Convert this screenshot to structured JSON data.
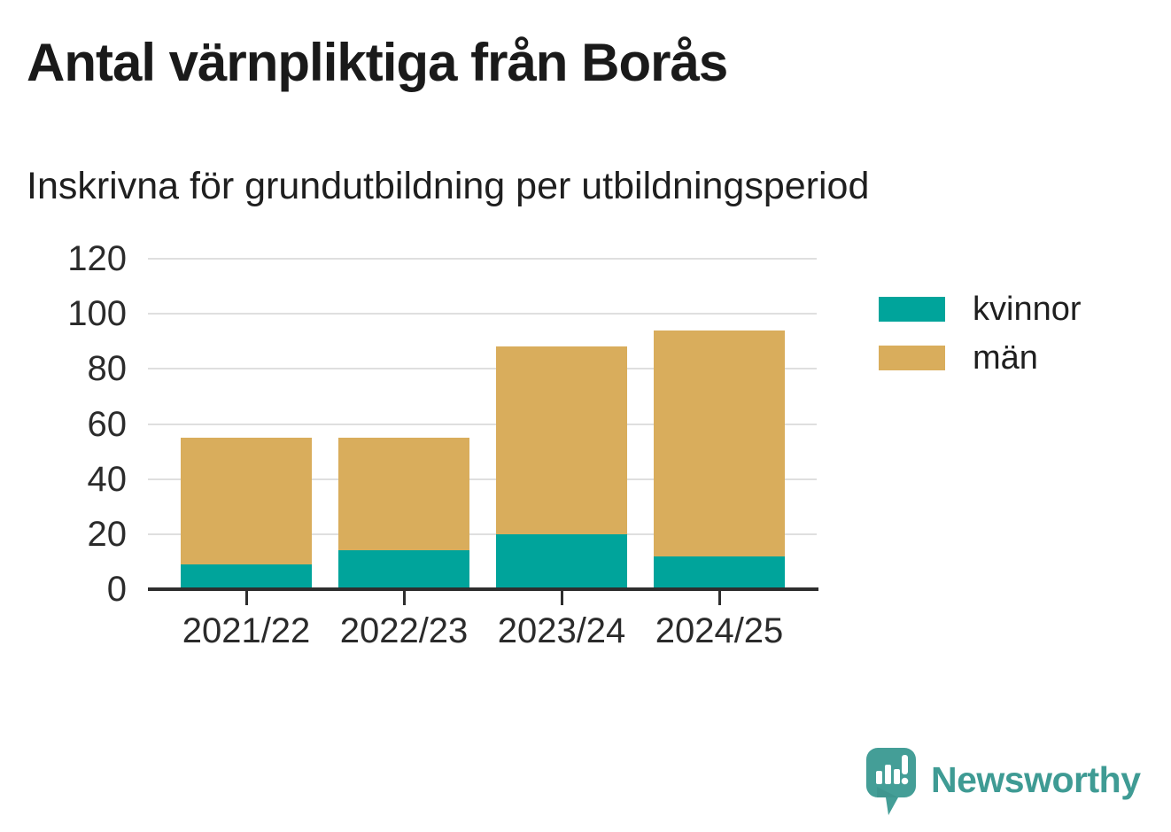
{
  "title": "Antal värnpliktiga från Borås",
  "subtitle": "Inskrivna för grundutbildning per utbildningsperiod",
  "logo": {
    "text": "Newsworthy"
  },
  "colors": {
    "kvinnor": "#00a49b",
    "man": "#d9ad5c",
    "axis": "#2e2e2e",
    "grid": "#dfdfdf",
    "brand_teal": "#449e97",
    "brand_text": "#3f9b94"
  },
  "chart_data": {
    "type": "bar",
    "stacked": true,
    "title": "Antal värnpliktiga från Borås",
    "subtitle": "Inskrivna för grundutbildning per utbildningsperiod",
    "xlabel": "",
    "ylabel": "",
    "categories": [
      "2021/22",
      "2022/23",
      "2023/24",
      "2024/25"
    ],
    "series": [
      {
        "name": "kvinnor",
        "color": "#00a49b",
        "values": [
          9,
          14,
          20,
          12
        ]
      },
      {
        "name": "män",
        "color": "#d9ad5c",
        "values": [
          46,
          41,
          68,
          82
        ]
      }
    ],
    "totals": [
      55,
      55,
      88,
      94
    ],
    "ylim": [
      0,
      120
    ],
    "yticks": [
      0,
      20,
      40,
      60,
      80,
      100,
      120
    ],
    "grid": true,
    "legend_position": "right"
  }
}
